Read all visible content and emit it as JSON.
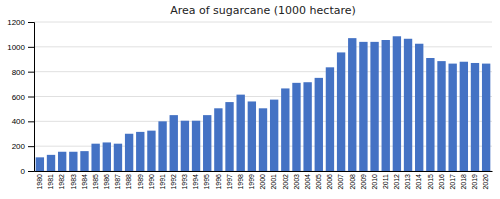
{
  "chart_data": {
    "type": "bar",
    "title": "Area of sugarcane (1000 hectare)",
    "categories": [
      "1980",
      "1981",
      "1982",
      "1983",
      "1984",
      "1985",
      "1986",
      "1987",
      "1988",
      "1989",
      "1990",
      "1991",
      "1992",
      "1993",
      "1994",
      "1995",
      "1996",
      "1997",
      "1998",
      "1999",
      "2000",
      "2001",
      "2002",
      "2003",
      "2004",
      "2005",
      "2006",
      "2007",
      "2008",
      "2009",
      "2010",
      "2011",
      "2012",
      "2013",
      "2014",
      "2015",
      "2016",
      "2017",
      "2018",
      "2019",
      "2020"
    ],
    "values": [
      110,
      130,
      155,
      155,
      160,
      220,
      230,
      220,
      300,
      315,
      325,
      400,
      450,
      405,
      405,
      450,
      505,
      555,
      615,
      560,
      505,
      575,
      665,
      710,
      715,
      750,
      835,
      955,
      1070,
      1040,
      1040,
      1055,
      1085,
      1065,
      1025,
      910,
      885,
      865,
      880,
      870,
      865
    ],
    "color": "#4472C4",
    "ylim": [
      0,
      1200
    ],
    "yticks": [
      0,
      200,
      400,
      600,
      800,
      1000,
      1200
    ],
    "grid": true
  }
}
